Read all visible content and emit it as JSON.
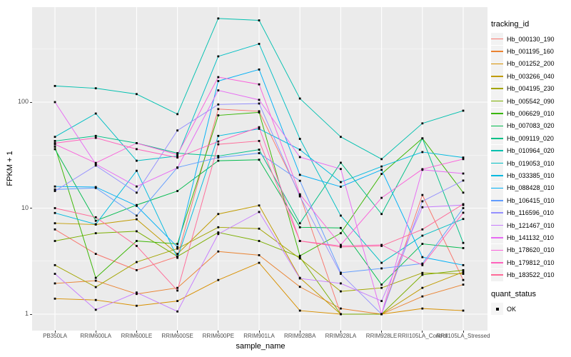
{
  "chart_data": {
    "type": "line",
    "title": "",
    "xlabel": "sample_name",
    "ylabel": "FPKM + 1",
    "y_scale": "log10",
    "ylim": [
      0.72,
      790
    ],
    "grid": "major-and-minor",
    "legend_position": "right",
    "panel_bg": "#EBEBEB",
    "grid_color": "#FFFFFF",
    "tick_label_color": "#4D4D4D",
    "y_ticks": [
      {
        "label": "100",
        "value": 100
      },
      {
        "label": "10",
        "value": 10
      },
      {
        "label": "1",
        "value": 1
      }
    ],
    "y_minor_ticks": [
      316.23,
      31.623,
      3.1623
    ],
    "categories": [
      "PB350LA",
      "RRIM600LA",
      "RRIM600LE",
      "RRIM600SE",
      "RRIM600PE",
      "RRIM901LA",
      "RRIM928BA",
      "RRIM928LA",
      "RRIM928LE",
      "RRII105LA_Control",
      "RRII105LA_Stressed"
    ],
    "series": [
      {
        "name": "Hb_000130_190",
        "color": "#F8766D",
        "values": [
          6.3,
          3.7,
          2.6,
          3.5,
          86,
          82,
          13.3,
          1.0,
          1.0,
          13.3,
          2.1
        ]
      },
      {
        "name": "Hb_001195_160",
        "color": "#EA8331",
        "values": [
          1.95,
          2.07,
          1.55,
          1.77,
          3.9,
          3.6,
          1.81,
          1.13,
          1.0,
          1.47,
          1.9
        ]
      },
      {
        "name": "Hb_001252_200",
        "color": "#D89000",
        "values": [
          1.4,
          1.36,
          1.2,
          1.33,
          2.1,
          3.05,
          1.08,
          1.0,
          1.0,
          1.13,
          1.08
        ]
      },
      {
        "name": "Hb_003266_040",
        "color": "#C09B00",
        "values": [
          7.2,
          7.0,
          7.85,
          3.7,
          8.8,
          10.6,
          2.2,
          1.0,
          1.0,
          1.77,
          2.5
        ]
      },
      {
        "name": "Hb_004195_230",
        "color": "#A3A500",
        "values": [
          2.9,
          1.8,
          3.1,
          4.15,
          6.6,
          6.4,
          3.35,
          1.64,
          1.77,
          2.45,
          2.4
        ]
      },
      {
        "name": "Hb_005542_090",
        "color": "#7CAE00",
        "values": [
          4.9,
          5.8,
          6.05,
          3.5,
          5.9,
          4.9,
          3.45,
          1.0,
          1.0,
          2.35,
          2.6
        ]
      },
      {
        "name": "Hb_006629_010",
        "color": "#39B600",
        "values": [
          38,
          2.2,
          4.9,
          4.6,
          75,
          80,
          3.55,
          5.8,
          21,
          45.5,
          14
        ]
      },
      {
        "name": "Hb_007083_020",
        "color": "#00BB4E",
        "values": [
          36,
          7.6,
          10.7,
          14.5,
          28,
          28.6,
          6.6,
          6.5,
          1.9,
          4.6,
          4.2
        ]
      },
      {
        "name": "Hb_009119_020",
        "color": "#00C087",
        "values": [
          43,
          48,
          41,
          33,
          31,
          35.6,
          7.2,
          26.8,
          8.8,
          45.5,
          4.7
        ]
      },
      {
        "name": "Hb_010964_020",
        "color": "#00C0AF",
        "values": [
          142,
          135,
          119,
          77,
          615,
          590,
          108,
          47,
          29,
          63,
          83
        ]
      },
      {
        "name": "Hb_019053_010",
        "color": "#00BFC4",
        "values": [
          47,
          78,
          28,
          31,
          270,
          354,
          45,
          8.5,
          3.05,
          5.5,
          7.9
        ]
      },
      {
        "name": "Hb_033385_010",
        "color": "#00BAE0",
        "values": [
          9,
          7.05,
          22.5,
          3.4,
          48,
          56,
          35.6,
          17.6,
          24.7,
          33.8,
          30
        ]
      },
      {
        "name": "Hb_088428_010",
        "color": "#00B0F6",
        "values": [
          16,
          15.8,
          10.5,
          4.3,
          158,
          203,
          20.6,
          15.9,
          23,
          3.45,
          2.9
        ]
      },
      {
        "name": "Hb_106415_010",
        "color": "#619CFF",
        "values": [
          15,
          15.5,
          8.5,
          24.2,
          30,
          33,
          18.1,
          2.46,
          2.7,
          3.0,
          10
        ]
      },
      {
        "name": "Hb_116596_010",
        "color": "#9590FF",
        "values": [
          14.5,
          25.2,
          14,
          54,
          95,
          97,
          12.9,
          2.4,
          1.0,
          11.6,
          18.2
        ]
      },
      {
        "name": "Hb_121467_010",
        "color": "#C77CFF",
        "values": [
          2.4,
          1.1,
          1.6,
          1.06,
          5.7,
          9.2,
          2.17,
          1.95,
          1.33,
          10.2,
          10.7
        ]
      },
      {
        "name": "Hb_141132_010",
        "color": "#E76BF3",
        "values": [
          100,
          26,
          16,
          24,
          129,
          105,
          30.3,
          23.4,
          1.0,
          23,
          21.2
        ]
      },
      {
        "name": "Hb_178620_010",
        "color": "#FA62DB",
        "values": [
          40,
          26.7,
          41,
          32,
          172,
          147,
          13.5,
          4.5,
          12.5,
          23.3,
          29
        ]
      },
      {
        "name": "Hb_179812_010",
        "color": "#FF62BC",
        "values": [
          41,
          46,
          36,
          30,
          42.5,
          58,
          4.9,
          4.4,
          4.5,
          2.9,
          9.05
        ]
      },
      {
        "name": "Hb_183522_010",
        "color": "#FF6A98",
        "values": [
          10,
          8.2,
          4.4,
          1.67,
          40,
          43,
          4.9,
          4.3,
          4.4,
          6.3,
          10.9
        ]
      }
    ],
    "points": {
      "shape": "square",
      "color": "#000000",
      "size": 2.8
    },
    "legend": {
      "color_title": "tracking_id",
      "shape_title": "quant_status",
      "shape_entries": [
        {
          "label": "OK",
          "shape": "square",
          "color": "#000000"
        }
      ]
    }
  }
}
